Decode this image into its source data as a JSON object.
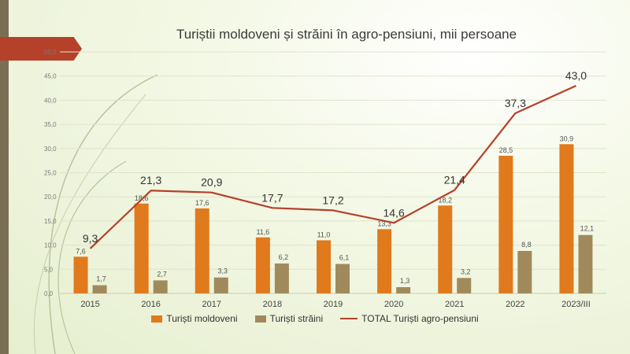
{
  "slide": {
    "accent_colors": {
      "strip": "#7a6f55",
      "arrow": "#b5412a"
    }
  },
  "chart_data": {
    "type": "bar",
    "title": "Turiștii moldoveni și străini în agro-pensiuni, mii persoane",
    "categories": [
      "2015",
      "2016",
      "2017",
      "2018",
      "2019",
      "2020",
      "2021",
      "2022",
      "2023/III"
    ],
    "series": [
      {
        "name": "Turiști moldoveni",
        "type": "bar",
        "color": "#e07a1c",
        "values": [
          7.6,
          18.6,
          17.6,
          11.6,
          11.0,
          13.3,
          18.2,
          28.5,
          30.9
        ],
        "labels": [
          "7,6",
          "18,6",
          "17,6",
          "11,6",
          "11,0",
          "13,3",
          "18,2",
          "28,5",
          "30,9"
        ]
      },
      {
        "name": "Turiști străini",
        "type": "bar",
        "color": "#a08a5c",
        "values": [
          1.7,
          2.7,
          3.3,
          6.2,
          6.1,
          1.3,
          3.2,
          8.8,
          12.1
        ],
        "labels": [
          "1,7",
          "2,7",
          "3,3",
          "6,2",
          "6,1",
          "1,3",
          "3,2",
          "8,8",
          "12,1"
        ]
      },
      {
        "name": "TOTAL Turiști agro-pensiuni",
        "type": "line",
        "color": "#b5412a",
        "values": [
          9.3,
          21.3,
          20.9,
          17.7,
          17.2,
          14.6,
          21.4,
          37.3,
          43.0
        ],
        "labels": [
          "9,3",
          "21,3",
          "20,9",
          "17,7",
          "17,2",
          "14,6",
          "21,4",
          "37,3",
          "43,0"
        ]
      }
    ],
    "yticks": [
      "0,0",
      "5,0",
      "10,0",
      "15,0",
      "20,0",
      "25,0",
      "30,0",
      "35,0",
      "40,0",
      "45,0",
      "50,0"
    ],
    "ylim": [
      0,
      50
    ],
    "grid": true,
    "legend_position": "bottom"
  }
}
